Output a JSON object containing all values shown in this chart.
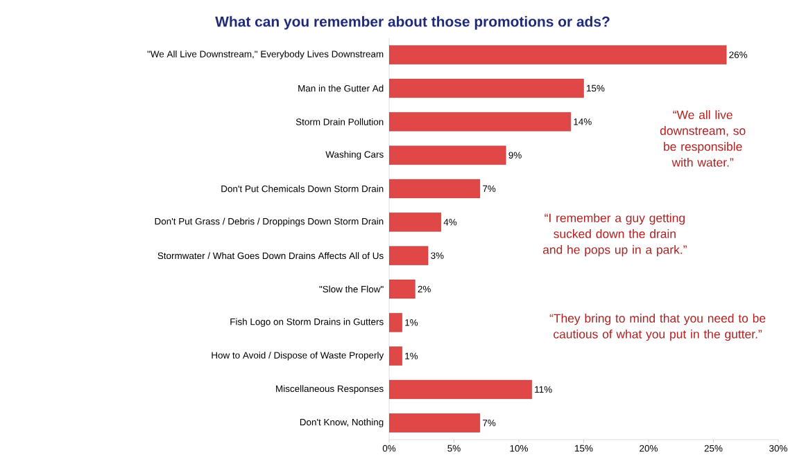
{
  "chart_data": {
    "type": "bar",
    "orientation": "horizontal",
    "title": "What can you remember about those promotions or ads?",
    "categories": [
      "\"We All Live Downstream,\" Everybody Lives Downstream",
      "Man in the Gutter Ad",
      "Storm Drain Pollution",
      "Washing Cars",
      "Don't Put Chemicals Down Storm Drain",
      "Don't Put Grass / Debris / Droppings Down Storm Drain",
      "Stormwater / What Goes Down Drains Affects All of Us",
      "\"Slow the Flow\"",
      "Fish Logo on Storm Drains in Gutters",
      "How to Avoid / Dispose of Waste Properly",
      "Miscellaneous Responses",
      "Don't Know, Nothing"
    ],
    "values": [
      26,
      15,
      14,
      9,
      7,
      4,
      3,
      2,
      1,
      1,
      11,
      7
    ],
    "value_labels": [
      "26%",
      "15%",
      "14%",
      "9%",
      "7%",
      "4%",
      "3%",
      "2%",
      "1%",
      "1%",
      "11%",
      "7%"
    ],
    "color": "#e04848",
    "xlim": [
      0,
      30
    ],
    "xticks": [
      {
        "value": 0,
        "label": "0%"
      },
      {
        "value": 5,
        "label": "5%"
      },
      {
        "value": 10,
        "label": "10%"
      },
      {
        "value": 15,
        "label": "15%"
      },
      {
        "value": 20,
        "label": "20%"
      },
      {
        "value": 25,
        "label": "25%"
      },
      {
        "value": 30,
        "label": "30%"
      }
    ],
    "grid": false,
    "annotations": [
      "“We all live downstream, so be responsible with water.”",
      "“I remember a guy getting sucked down the drain and he pops up in a park.”",
      "“They bring to mind that you need to be cautious of what you put in the gutter.”"
    ]
  }
}
